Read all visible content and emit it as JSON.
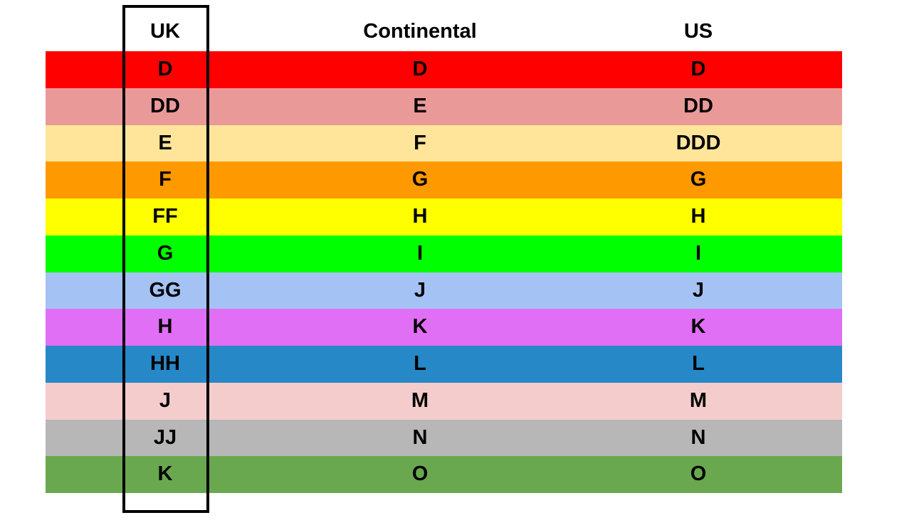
{
  "headers": [
    "UK",
    "Continental",
    "US"
  ],
  "highlighted_column": "UK",
  "rows": [
    {
      "color": "#ff0000",
      "cells": [
        "D",
        "D",
        "D"
      ]
    },
    {
      "color": "#ea9999",
      "cells": [
        "DD",
        "E",
        "DD"
      ]
    },
    {
      "color": "#ffe599",
      "cells": [
        "E",
        "F",
        "DDD"
      ]
    },
    {
      "color": "#ff9900",
      "cells": [
        "F",
        "G",
        "G"
      ]
    },
    {
      "color": "#ffff00",
      "cells": [
        "FF",
        "H",
        "H"
      ]
    },
    {
      "color": "#00ff00",
      "cells": [
        "G",
        "I",
        "I"
      ]
    },
    {
      "color": "#a4c2f4",
      "cells": [
        "GG",
        "J",
        "J"
      ]
    },
    {
      "color": "#e06ff5",
      "cells": [
        "H",
        "K",
        "K"
      ]
    },
    {
      "color": "#2688c7",
      "cells": [
        "HH",
        "L",
        "L"
      ]
    },
    {
      "color": "#f4cccc",
      "cells": [
        "J",
        "M",
        "M"
      ]
    },
    {
      "color": "#b7b7b7",
      "cells": [
        "JJ",
        "N",
        "N"
      ]
    },
    {
      "color": "#6aa84f",
      "cells": [
        "K",
        "O",
        "O"
      ]
    }
  ]
}
